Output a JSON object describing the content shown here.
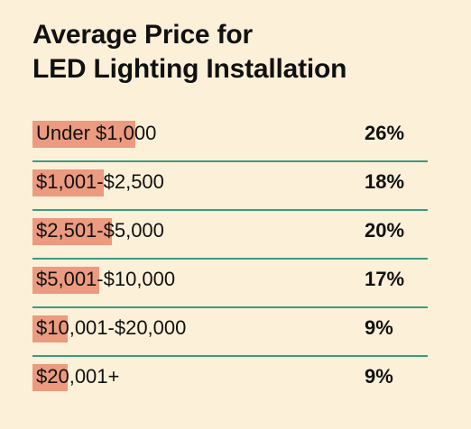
{
  "chart_data": {
    "type": "bar",
    "title": "Average Price for LED Lighting Installation",
    "title_lines": [
      "Average Price for",
      "LED Lighting Installation"
    ],
    "categories": [
      "Under $1,000",
      "$1,001-$2,500",
      "$2,501-$5,000",
      "$5,001-$10,000",
      "$10,001-$20,000",
      "$20,001+"
    ],
    "values": [
      26,
      18,
      20,
      17,
      9,
      9
    ],
    "value_labels": [
      "26%",
      "18%",
      "20%",
      "17%",
      "9%",
      "9%"
    ],
    "unit": "%",
    "xlim": [
      0,
      100
    ],
    "grid": false,
    "legend": "none",
    "colors": {
      "background": "#fdf0d8",
      "bar": "#ec9a80",
      "divider": "#3a9c82",
      "text": "#111111"
    }
  }
}
